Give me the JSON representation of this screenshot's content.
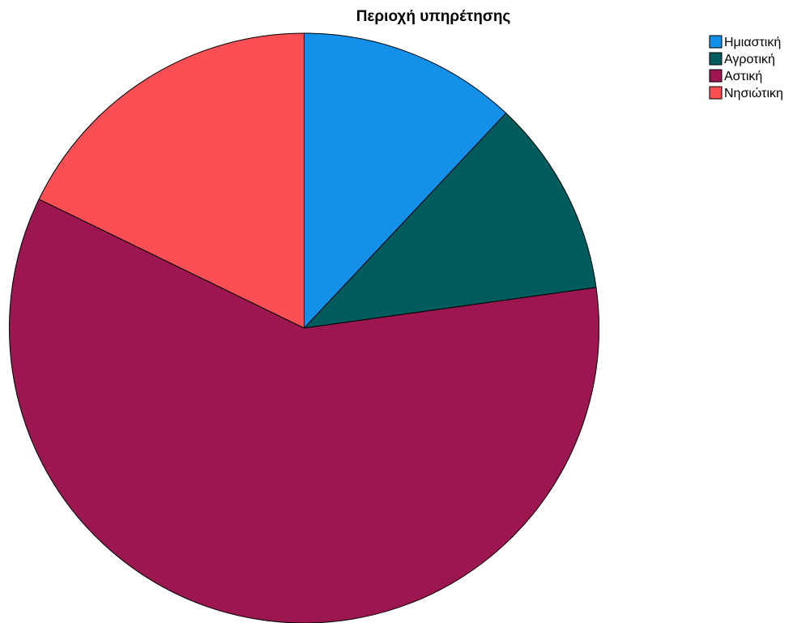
{
  "chart_data": {
    "type": "pie",
    "title": "Περιοχή υπηρέτησης",
    "categories": [
      "Ημιαστική",
      "Αγροτική",
      "Αστική",
      "Νησιώτικη"
    ],
    "values": [
      12.0,
      10.8,
      59.4,
      17.8
    ],
    "colors": [
      "#1490e8",
      "#005c5c",
      "#9c164f",
      "#fc4e55"
    ],
    "start_angle_deg": 0,
    "direction": "clockwise",
    "legend_position": "top-right",
    "data_labels": false
  }
}
